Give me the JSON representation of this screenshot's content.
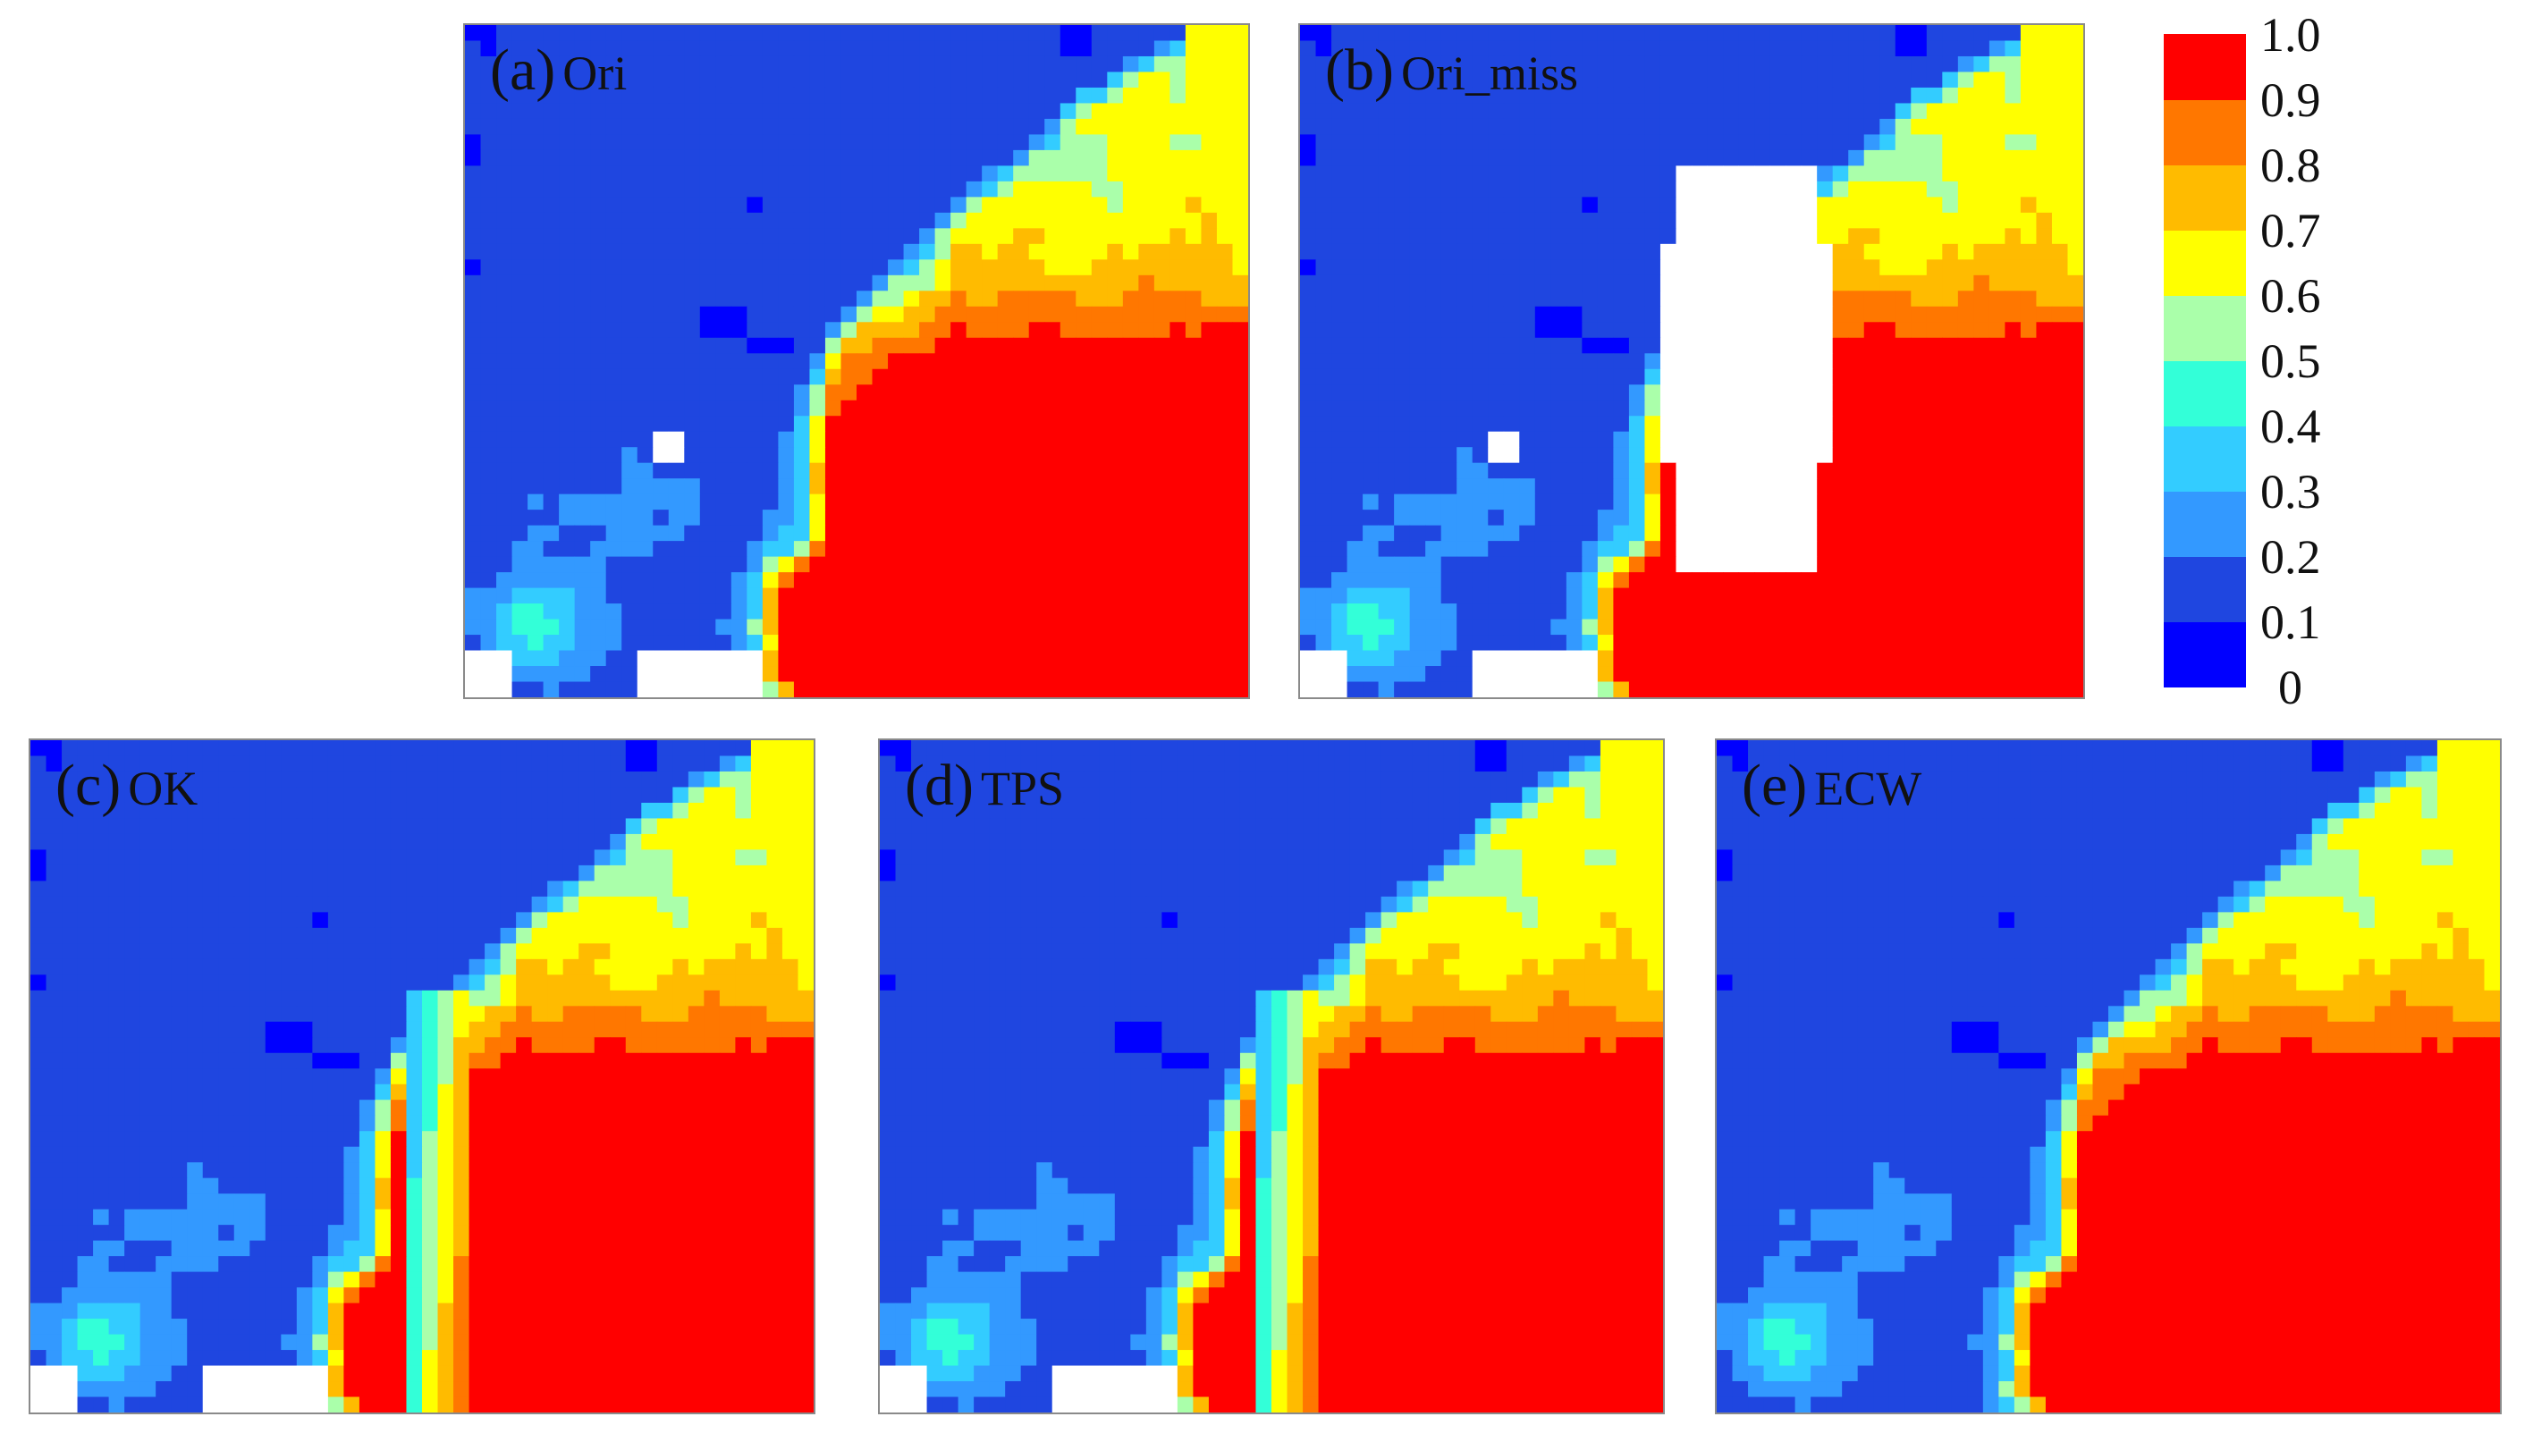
{
  "panels": [
    {
      "letter": "(a)",
      "name": "Ori",
      "mask": "none",
      "interp": "none",
      "gap": "full"
    },
    {
      "letter": "(b)",
      "name": "Ori_miss",
      "mask": "blob",
      "interp": "none",
      "gap": "full"
    },
    {
      "letter": "(c)",
      "name": "OK",
      "mask": "none",
      "interp": "smooth",
      "gap": "full"
    },
    {
      "letter": "(d)",
      "name": "TPS",
      "mask": "none",
      "interp": "smooth",
      "gap": "full"
    },
    {
      "letter": "(e)",
      "name": "ECW",
      "mask": "none",
      "interp": "textured",
      "gap": "none"
    }
  ],
  "colorbar": {
    "ticks": [
      "1.0",
      "0.9",
      "0.8",
      "0.7",
      "0.6",
      "0.5",
      "0.4",
      "0.3",
      "0.2",
      "0.1",
      "0"
    ],
    "colors": [
      "#0000ff",
      "#1f46e0",
      "#3399ff",
      "#33ccff",
      "#33ffd8",
      "#aaffaa",
      "#ffff00",
      "#ffbb00",
      "#ff7700",
      "#ff0000"
    ]
  },
  "chart_data": {
    "type": "heatmap",
    "title": "",
    "xlabel": "",
    "ylabel": "",
    "colorbar_range": [
      0,
      1
    ],
    "panels": [
      "(a) Ori",
      "(b) Ori_miss",
      "(c) OK",
      "(d) TPS",
      "(e) ECW"
    ]
  }
}
